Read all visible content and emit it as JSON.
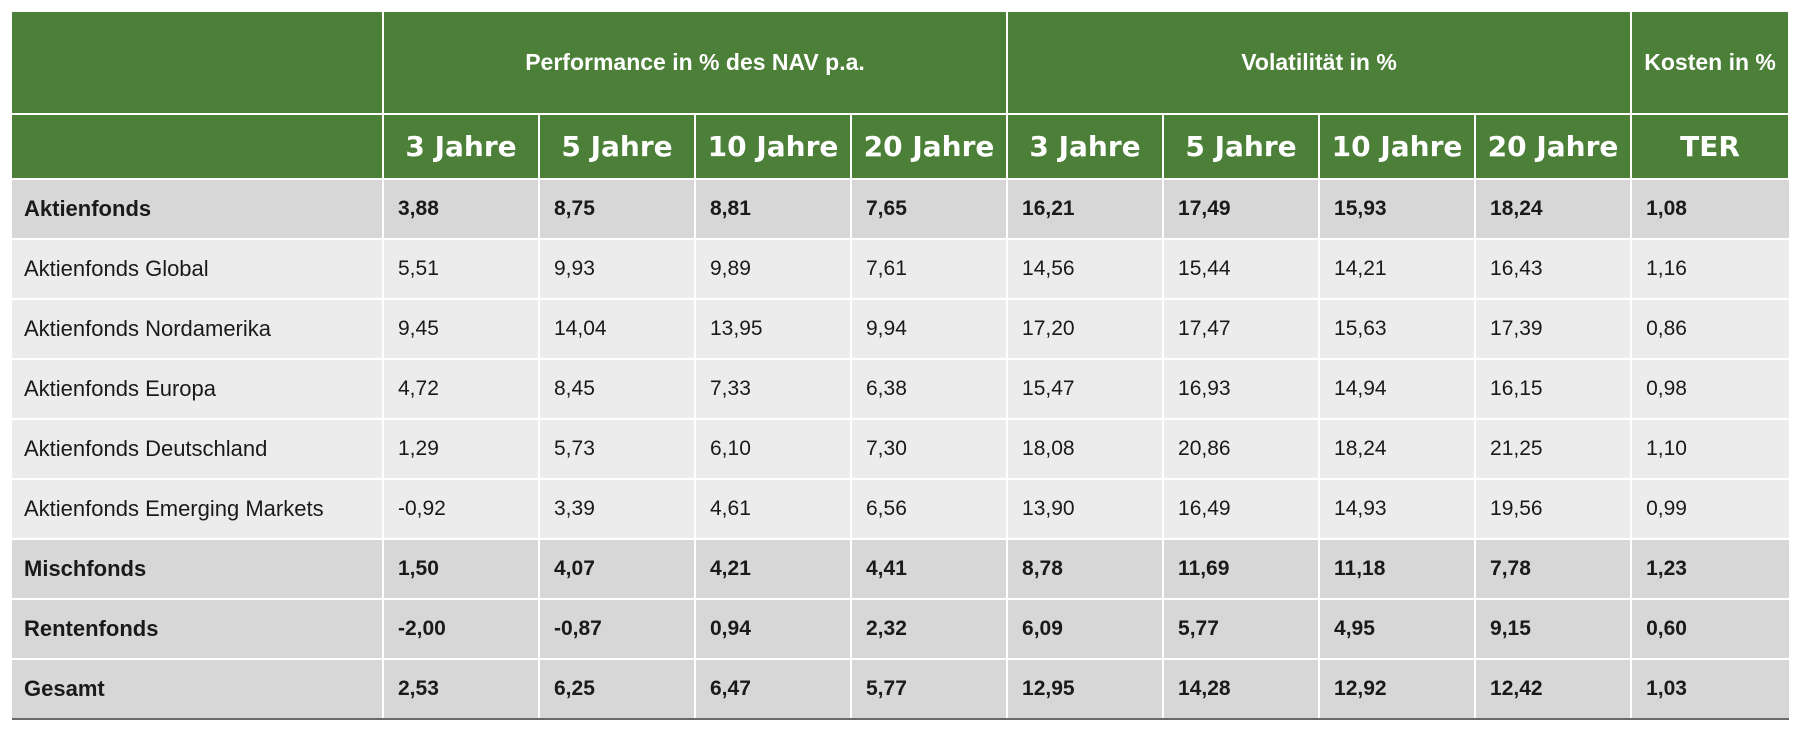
{
  "header": {
    "performance_title": "Performance in % des NAV p.a.",
    "volatility_title": "Volatilität in %",
    "costs_title": "Kosten in %",
    "subcolumns": [
      "3 Jahre",
      "5 Jahre",
      "10 Jahre",
      "20 Jahre",
      "3 Jahre",
      "5 Jahre",
      "10 Jahre",
      "20 Jahre",
      "TER"
    ]
  },
  "rows": [
    {
      "label": "Aktienfonds",
      "type": "sum",
      "values": [
        "3,88",
        "8,75",
        "8,81",
        "7,65",
        "16,21",
        "17,49",
        "15,93",
        "18,24",
        "1,08"
      ]
    },
    {
      "label": "Aktienfonds Global",
      "type": "sub",
      "values": [
        "5,51",
        "9,93",
        "9,89",
        "7,61",
        "14,56",
        "15,44",
        "14,21",
        "16,43",
        "1,16"
      ]
    },
    {
      "label": "Aktienfonds Nordamerika",
      "type": "sub",
      "values": [
        "9,45",
        "14,04",
        "13,95",
        "9,94",
        "17,20",
        "17,47",
        "15,63",
        "17,39",
        "0,86"
      ]
    },
    {
      "label": "Aktienfonds Europa",
      "type": "sub",
      "values": [
        "4,72",
        "8,45",
        "7,33",
        "6,38",
        "15,47",
        "16,93",
        "14,94",
        "16,15",
        "0,98"
      ]
    },
    {
      "label": "Aktienfonds Deutschland",
      "type": "sub",
      "values": [
        "1,29",
        "5,73",
        "6,10",
        "7,30",
        "18,08",
        "20,86",
        "18,24",
        "21,25",
        "1,10"
      ]
    },
    {
      "label": "Aktienfonds Emerging Markets",
      "type": "sub",
      "values": [
        "-0,92",
        "3,39",
        "4,61",
        "6,56",
        "13,90",
        "16,49",
        "14,93",
        "19,56",
        "0,99"
      ]
    },
    {
      "label": "Mischfonds",
      "type": "sum",
      "values": [
        "1,50",
        "4,07",
        "4,21",
        "4,41",
        "8,78",
        "11,69",
        "11,18",
        "7,78",
        "1,23"
      ]
    },
    {
      "label": "Rentenfonds",
      "type": "sum",
      "values": [
        "-2,00",
        "-0,87",
        "0,94",
        "2,32",
        "6,09",
        "5,77",
        "4,95",
        "9,15",
        "0,60"
      ]
    },
    {
      "label": "Gesamt",
      "type": "sum",
      "values": [
        "2,53",
        "6,25",
        "6,47",
        "5,77",
        "12,95",
        "14,28",
        "12,92",
        "12,42",
        "1,03"
      ]
    }
  ],
  "colors": {
    "header_green": "#4c7f37",
    "summary_row": "#d7d7d7",
    "detail_row": "#ececec"
  }
}
